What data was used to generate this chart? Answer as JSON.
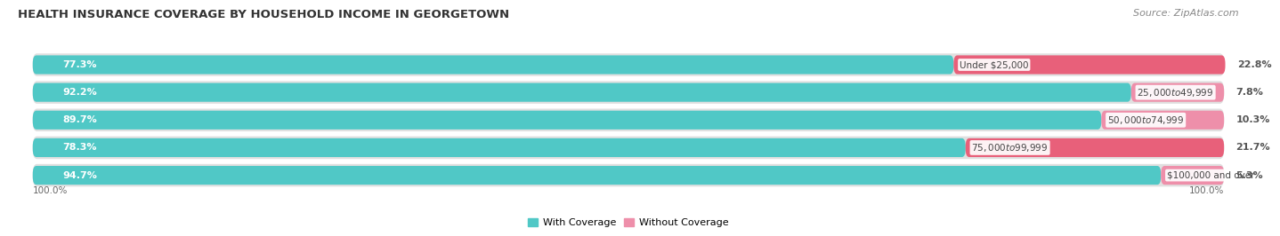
{
  "title": "HEALTH INSURANCE COVERAGE BY HOUSEHOLD INCOME IN GEORGETOWN",
  "source": "Source: ZipAtlas.com",
  "categories": [
    "Under $25,000",
    "$25,000 to $49,999",
    "$50,000 to $74,999",
    "$75,000 to $99,999",
    "$100,000 and over"
  ],
  "with_coverage": [
    77.3,
    92.2,
    89.7,
    78.3,
    94.7
  ],
  "without_coverage": [
    22.8,
    7.8,
    10.3,
    21.7,
    5.3
  ],
  "color_with": "#50C8C6",
  "color_without_rows": [
    "#E8607A",
    "#F0A0B8",
    "#F0A0B8",
    "#E8607A",
    "#F0A0B8"
  ],
  "row_bg_color": "#e8e8e8",
  "title_fontsize": 9.5,
  "source_fontsize": 8,
  "label_fontsize": 8,
  "tick_fontsize": 8,
  "legend_label_with": "With Coverage",
  "legend_label_without": "Without Coverage"
}
